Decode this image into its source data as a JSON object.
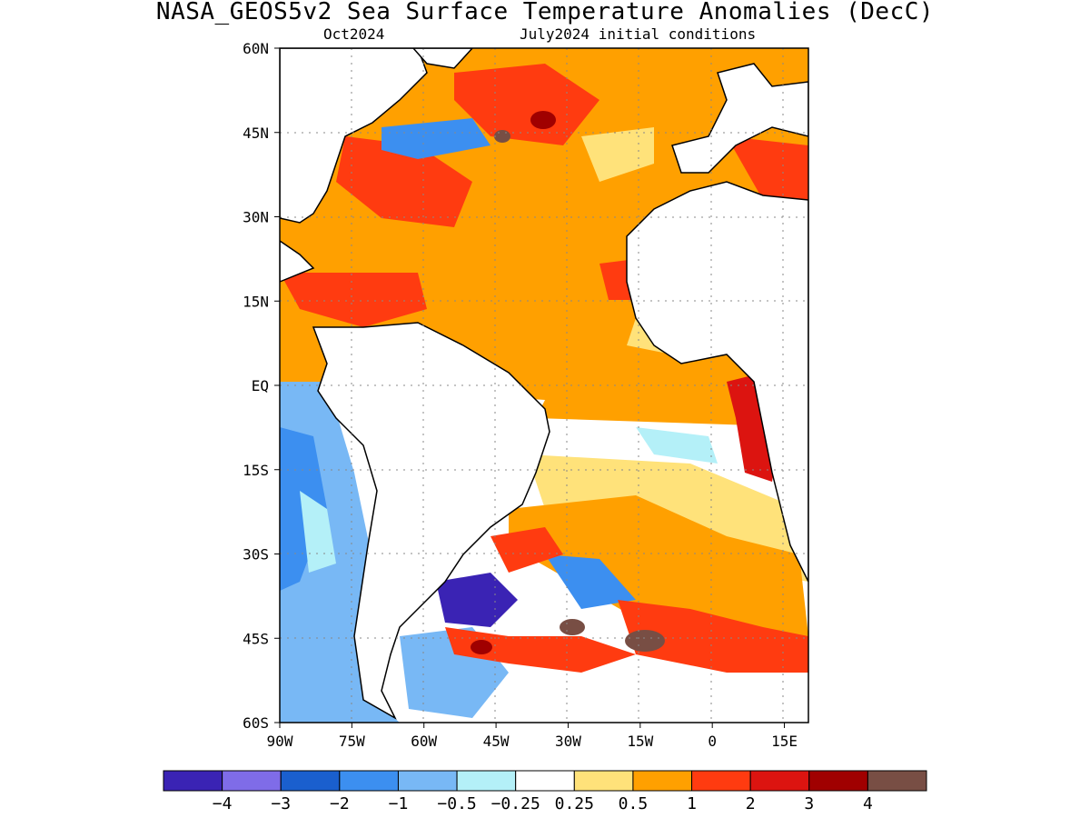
{
  "title": "NASA_GEOS5v2 Sea Surface Temperature Anomalies (DecC)",
  "subtitle_left": "Oct2024",
  "subtitle_right": "July2024 initial conditions",
  "lat_labels": [
    "60N",
    "45N",
    "30N",
    "15N",
    "EQ",
    "15S",
    "30S",
    "45S",
    "60S"
  ],
  "lon_labels": [
    "90W",
    "75W",
    "60W",
    "45W",
    "30W",
    "15W",
    "0",
    "15E"
  ],
  "colorbar": {
    "colors": [
      "#3a23b4",
      "#7f6ce8",
      "#1a5fce",
      "#3c8ff0",
      "#78b8f5",
      "#b4f0f8",
      "#ffffff",
      "#ffe27a",
      "#ffa000",
      "#ff3b10",
      "#dc1410",
      "#a00000",
      "#784e44"
    ],
    "labels": [
      "-4",
      "-3",
      "-2",
      "-1",
      "-0.5",
      "-0.25",
      "0.25",
      "0.5",
      "1",
      "2",
      "3",
      "4"
    ]
  }
}
